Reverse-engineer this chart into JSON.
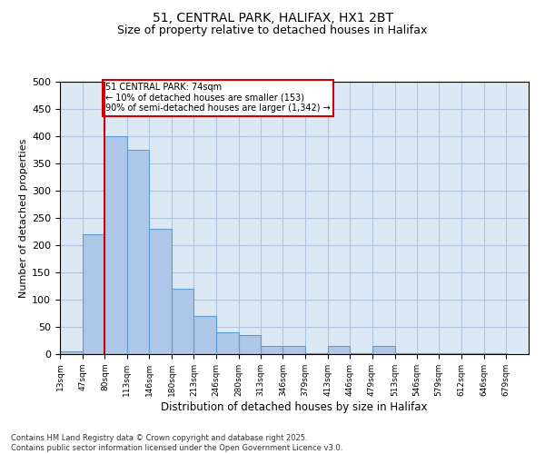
{
  "title1": "51, CENTRAL PARK, HALIFAX, HX1 2BT",
  "title2": "Size of property relative to detached houses in Halifax",
  "xlabel": "Distribution of detached houses by size in Halifax",
  "ylabel": "Number of detached properties",
  "footer": "Contains HM Land Registry data © Crown copyright and database right 2025.\nContains public sector information licensed under the Open Government Licence v3.0.",
  "bar_edges": [
    13,
    47,
    80,
    113,
    146,
    180,
    213,
    246,
    280,
    313,
    346,
    379,
    413,
    446,
    479,
    513,
    546,
    579,
    612,
    646,
    679
  ],
  "bar_heights": [
    5,
    220,
    400,
    375,
    230,
    120,
    70,
    40,
    35,
    15,
    15,
    2,
    15,
    2,
    15,
    2,
    2,
    2,
    2,
    2
  ],
  "bar_color": "#aec6e8",
  "bar_edge_color": "#5a9fd4",
  "grid_color": "#b0c4de",
  "background_color": "#dde8f5",
  "vline_x": 80,
  "vline_color": "#cc0000",
  "annotation_text": "51 CENTRAL PARK: 74sqm\n← 10% of detached houses are smaller (153)\n90% of semi-detached houses are larger (1,342) →",
  "annotation_box_color": "#ffffff",
  "annotation_box_edge": "#cc0000",
  "ylim": [
    0,
    500
  ],
  "xlim_left": 13,
  "tick_labels": [
    "13sqm",
    "47sqm",
    "80sqm",
    "113sqm",
    "146sqm",
    "180sqm",
    "213sqm",
    "246sqm",
    "280sqm",
    "313sqm",
    "346sqm",
    "379sqm",
    "413sqm",
    "446sqm",
    "479sqm",
    "513sqm",
    "546sqm",
    "579sqm",
    "612sqm",
    "646sqm",
    "679sqm"
  ],
  "yticks": [
    0,
    50,
    100,
    150,
    200,
    250,
    300,
    350,
    400,
    450,
    500
  ]
}
